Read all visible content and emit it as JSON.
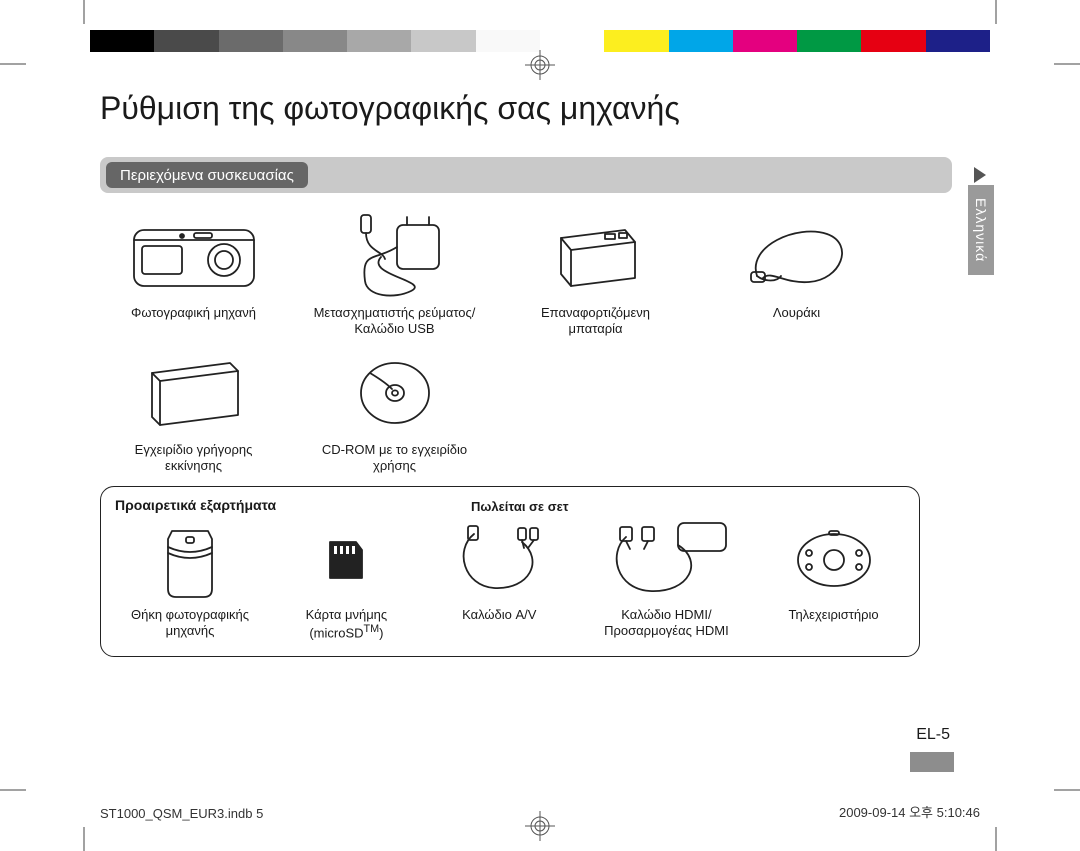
{
  "header_colors": [
    "#000000",
    "#4a4a4a",
    "#6b6b6b",
    "#888888",
    "#a8a8a8",
    "#c8c8c8",
    "#f9f9f9",
    "#ffffff",
    "#fcee1f",
    "#00a6e8",
    "#e4007f",
    "#009944",
    "#e60012",
    "#1d2088"
  ],
  "title": "Ρύθμιση της φωτογραφικής σας μηχανής",
  "section_header": "Περιεχόμενα συσκευασίας",
  "language_tab": "Ελληνικά",
  "contents": [
    {
      "label": "Φωτογραφική μηχανή"
    },
    {
      "label": "Μετασχηματιστής ρεύματος/\nΚαλώδιο USB"
    },
    {
      "label": "Επαναφορτιζόμενη\nμπαταρία"
    },
    {
      "label": "Λουράκι"
    },
    {
      "label": "Εγχειρίδιο γρήγορης\nεκκίνησης"
    },
    {
      "label": "CD-ROM με το εγχειρίδιο\nχρήσης"
    }
  ],
  "optional": {
    "title": "Προαιρετικά εξαρτήματα",
    "sold_as_set": "Πωλείται σε σετ",
    "items": [
      {
        "label": "Θήκη φωτογραφικής\nμηχανής"
      },
      {
        "label_html": "Κάρτα μνήμης<br>(microSD<sup>TM</sup>)"
      },
      {
        "label": "Καλώδιο A/V"
      },
      {
        "label": "Καλώδιο HDMI/\nΠροσαρμογέας HDMI"
      },
      {
        "label": "Τηλεχειριστήριο"
      }
    ]
  },
  "page_number": "EL-5",
  "footer_left": "ST1000_QSM_EUR3.indb   5",
  "footer_right": "2009-09-14   오후 5:10:46"
}
